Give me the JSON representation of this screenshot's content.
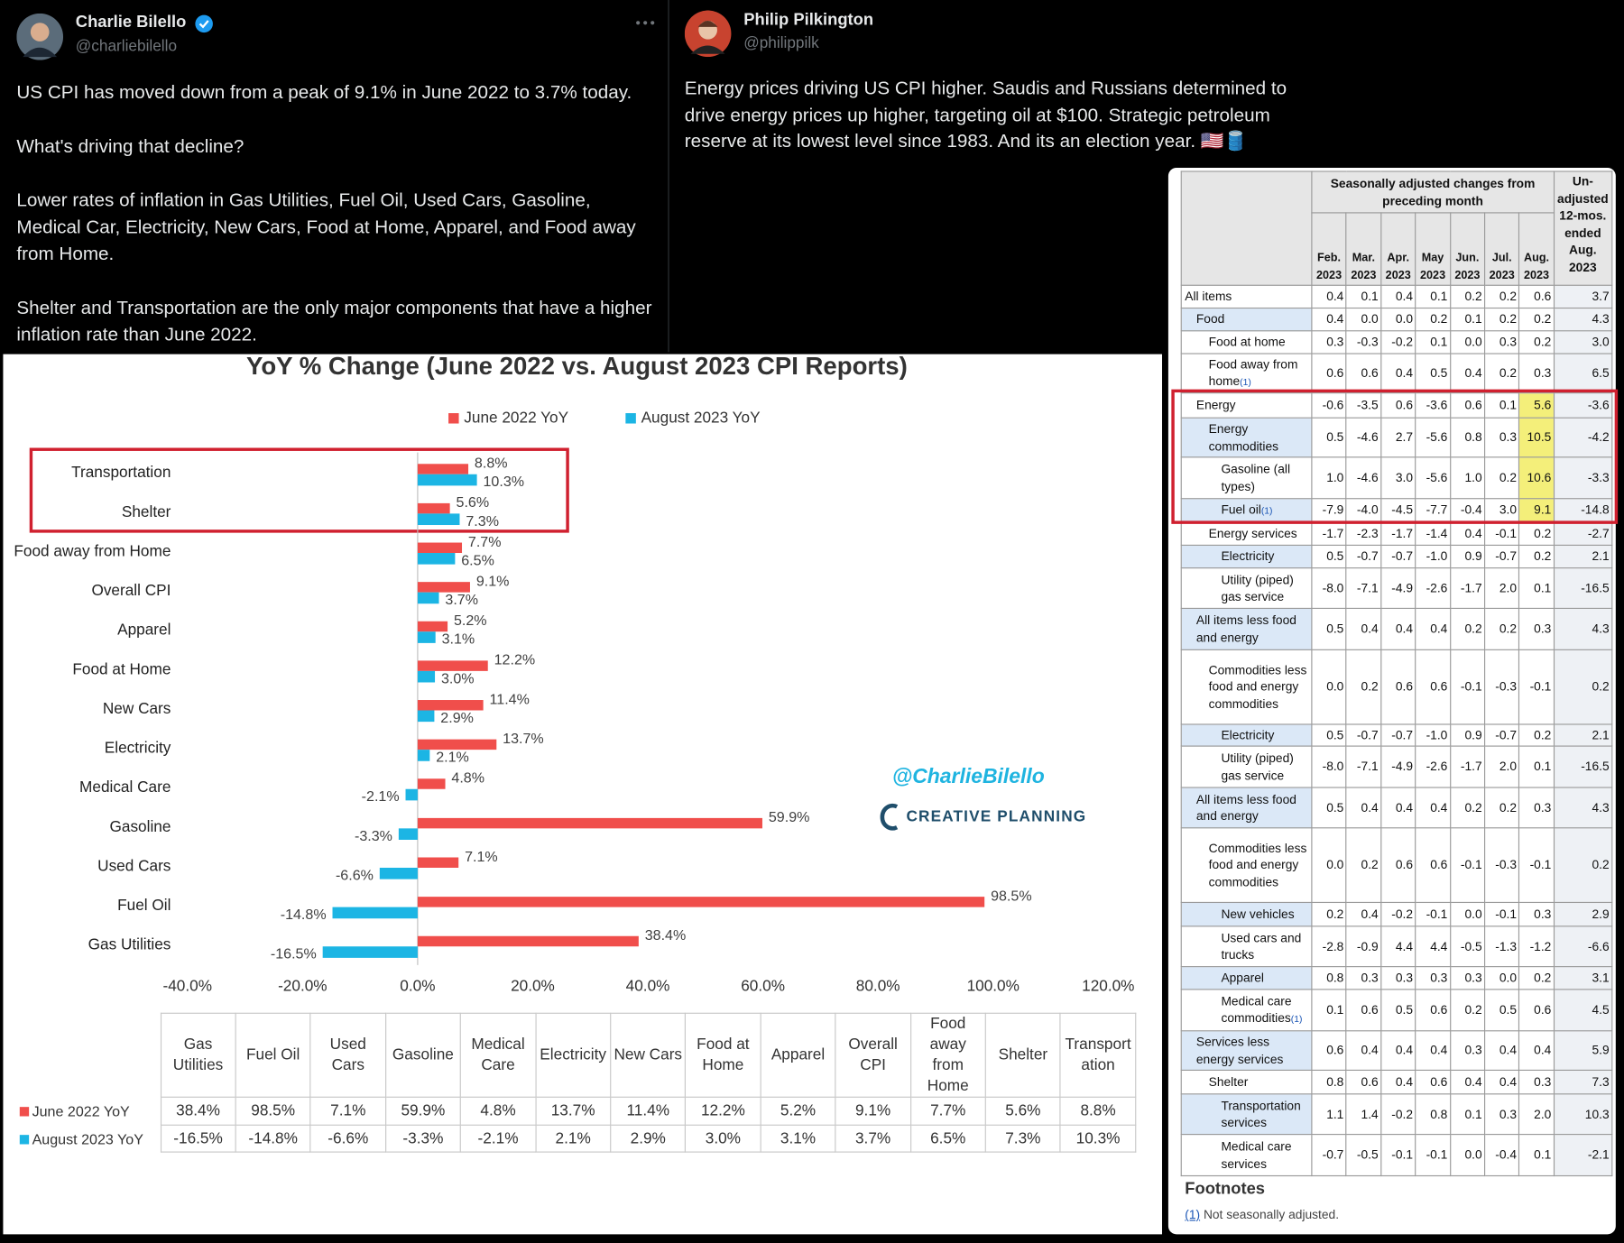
{
  "tweets": [
    {
      "name": "Charlie Bilello",
      "handle": "@charliebilello",
      "paragraphs": [
        "US CPI has moved down from a peak of 9.1% in June 2022 to 3.7% today.",
        "What's driving that decline?",
        "Lower rates of inflation in Gas Utilities, Fuel Oil, Used Cars, Gasoline, Medical Car, Electricity, New Cars, Food at Home, Apparel, and Food away from Home.",
        "Shelter and Transportation are the only major components that have a higher inflation rate than June 2022."
      ]
    },
    {
      "name": "Philip Pilkington",
      "handle": "@philippilk",
      "paragraphs": [
        "Energy prices driving US CPI higher. Saudis and Russians determined to drive energy prices up higher, targeting oil at $100. Strategic petroleum reserve at its lowest level since 1983. And its an election year. 🇺🇸🛢️"
      ]
    }
  ],
  "chart_data": {
    "type": "bar",
    "orientation": "horizontal",
    "title": "YoY % Change (June 2022 vs. August 2023 CPI Reports)",
    "categories": [
      "Gas Utilities",
      "Fuel Oil",
      "Used Cars",
      "Gasoline",
      "Medical Care",
      "Electricity",
      "New Cars",
      "Food at Home",
      "Apparel",
      "Overall CPI",
      "Food away from Home",
      "Shelter",
      "Transportation"
    ],
    "series": [
      {
        "name": "June 2022 YoY",
        "color": "#f04e4b",
        "values": [
          38.4,
          98.5,
          7.1,
          59.9,
          4.8,
          13.7,
          11.4,
          12.2,
          5.2,
          9.1,
          7.7,
          5.6,
          8.8
        ],
        "value_labels": [
          "38.4%",
          "98.5%",
          "7.1%",
          "59.9%",
          "4.8%",
          "13.7%",
          "11.4%",
          "12.2%",
          "5.2%",
          "9.1%",
          "7.7%",
          "5.6%",
          "8.8%"
        ]
      },
      {
        "name": "August 2023 YoY",
        "color": "#1cb5e4",
        "values": [
          -16.5,
          -14.8,
          -6.6,
          -3.3,
          -2.1,
          2.1,
          2.9,
          3.0,
          3.1,
          3.7,
          6.5,
          7.3,
          10.3
        ],
        "value_labels": [
          "-16.5%",
          "-14.8%",
          "-6.6%",
          "-3.3%",
          "-2.1%",
          "2.1%",
          "2.9%",
          "3.0%",
          "3.1%",
          "3.7%",
          "6.5%",
          "7.3%",
          "10.3%"
        ]
      }
    ],
    "xlim": [
      -40,
      120
    ],
    "xticks": [
      {
        "value": -40,
        "label": "-40.0%"
      },
      {
        "value": -20,
        "label": "-20.0%"
      },
      {
        "value": 0,
        "label": "0.0%"
      },
      {
        "value": 20,
        "label": "20.0%"
      },
      {
        "value": 40,
        "label": "40.0%"
      },
      {
        "value": 60,
        "label": "60.0%"
      },
      {
        "value": 80,
        "label": "80.0%"
      },
      {
        "value": 100,
        "label": "100.0%"
      },
      {
        "value": 120,
        "label": "120.0%"
      }
    ],
    "legend": "top",
    "data_table": true,
    "annotations": [
      "@CharlieBilello",
      "CREATIVE PLANNING"
    ]
  },
  "bls_table": {
    "header_group": "Seasonally adjusted changes from preceding month",
    "header_12mo": "Un-adjusted 12-mos. ended Aug. 2023",
    "months": [
      "Feb. 2023",
      "Mar. 2023",
      "Apr. 2023",
      "May 2023",
      "Jun. 2023",
      "Jul. 2023",
      "Aug. 2023"
    ],
    "rows": [
      {
        "label": "All items",
        "values": [
          "0.4",
          "0.1",
          "0.4",
          "0.1",
          "0.2",
          "0.2",
          "0.6"
        ],
        "yoy": "3.7"
      },
      {
        "label": "Food",
        "values": [
          "0.4",
          "0.0",
          "0.0",
          "0.2",
          "0.1",
          "0.2",
          "0.2"
        ],
        "yoy": "4.3"
      },
      {
        "label": "Food at home",
        "values": [
          "0.3",
          "-0.3",
          "-0.2",
          "0.1",
          "0.0",
          "0.3",
          "0.2"
        ],
        "yoy": "3.0"
      },
      {
        "label": "Food away from home",
        "note": "(1)",
        "values": [
          "0.6",
          "0.6",
          "0.4",
          "0.5",
          "0.4",
          "0.2",
          "0.3"
        ],
        "yoy": "6.5"
      },
      {
        "label": "Energy",
        "values": [
          "-0.6",
          "-3.5",
          "0.6",
          "-3.6",
          "0.6",
          "0.1",
          "5.6"
        ],
        "yoy": "-3.6"
      },
      {
        "label": "Energy commodities",
        "values": [
          "0.5",
          "-4.6",
          "2.7",
          "-5.6",
          "0.8",
          "0.3",
          "10.5"
        ],
        "yoy": "-4.2"
      },
      {
        "label": "Gasoline (all types)",
        "values": [
          "1.0",
          "-4.6",
          "3.0",
          "-5.6",
          "1.0",
          "0.2",
          "10.6"
        ],
        "yoy": "-3.3"
      },
      {
        "label": "Fuel oil",
        "note": "(1)",
        "values": [
          "-7.9",
          "-4.0",
          "-4.5",
          "-7.7",
          "-0.4",
          "3.0",
          "9.1"
        ],
        "yoy": "-14.8"
      },
      {
        "label": "Energy services",
        "values": [
          "-1.7",
          "-2.3",
          "-1.7",
          "-1.4",
          "0.4",
          "-0.1",
          "0.2"
        ],
        "yoy": "-2.7"
      },
      {
        "label": "Electricity",
        "values": [
          "0.5",
          "-0.7",
          "-0.7",
          "-1.0",
          "0.9",
          "-0.7",
          "0.2"
        ],
        "yoy": "2.1"
      },
      {
        "label": "Utility (piped) gas service",
        "values": [
          "-8.0",
          "-7.1",
          "-4.9",
          "-2.6",
          "-1.7",
          "2.0",
          "0.1"
        ],
        "yoy": "-16.5"
      },
      {
        "label": "All items less food and energy",
        "values": [
          "0.5",
          "0.4",
          "0.4",
          "0.4",
          "0.2",
          "0.2",
          "0.3"
        ],
        "yoy": "4.3"
      },
      {
        "label": "Commodities less food and energy commodities",
        "values": [
          "0.0",
          "0.2",
          "0.6",
          "0.6",
          "-0.1",
          "-0.3",
          "-0.1"
        ],
        "yoy": "0.2"
      },
      {
        "label": "Electricity",
        "values": [
          "0.5",
          "-0.7",
          "-0.7",
          "-1.0",
          "0.9",
          "-0.7",
          "0.2"
        ],
        "yoy": "2.1"
      },
      {
        "label": "Utility (piped) gas service",
        "values": [
          "-8.0",
          "-7.1",
          "-4.9",
          "-2.6",
          "-1.7",
          "2.0",
          "0.1"
        ],
        "yoy": "-16.5"
      },
      {
        "label": "All items less food and energy",
        "values": [
          "0.5",
          "0.4",
          "0.4",
          "0.4",
          "0.2",
          "0.2",
          "0.3"
        ],
        "yoy": "4.3"
      },
      {
        "label": "Commodities less food and energy commodities",
        "values": [
          "0.0",
          "0.2",
          "0.6",
          "0.6",
          "-0.1",
          "-0.3",
          "-0.1"
        ],
        "yoy": "0.2"
      },
      {
        "label": "New vehicles",
        "values": [
          "0.2",
          "0.4",
          "-0.2",
          "-0.1",
          "0.0",
          "-0.1",
          "0.3"
        ],
        "yoy": "2.9"
      },
      {
        "label": "Used cars and trucks",
        "values": [
          "-2.8",
          "-0.9",
          "4.4",
          "4.4",
          "-0.5",
          "-1.3",
          "-1.2"
        ],
        "yoy": "-6.6"
      },
      {
        "label": "Apparel",
        "values": [
          "0.8",
          "0.3",
          "0.3",
          "0.3",
          "0.3",
          "0.0",
          "0.2"
        ],
        "yoy": "3.1"
      },
      {
        "label": "Medical care commodities",
        "note": "(1)",
        "values": [
          "0.1",
          "0.6",
          "0.5",
          "0.6",
          "0.2",
          "0.5",
          "0.6"
        ],
        "yoy": "4.5"
      },
      {
        "label": "Services less energy services",
        "values": [
          "0.6",
          "0.4",
          "0.4",
          "0.4",
          "0.3",
          "0.4",
          "0.4"
        ],
        "yoy": "5.9"
      },
      {
        "label": "Shelter",
        "values": [
          "0.8",
          "0.6",
          "0.4",
          "0.6",
          "0.4",
          "0.4",
          "0.3"
        ],
        "yoy": "7.3"
      },
      {
        "label": "Transportation services",
        "values": [
          "1.1",
          "1.4",
          "-0.2",
          "0.8",
          "0.1",
          "0.3",
          "2.0"
        ],
        "yoy": "10.3"
      },
      {
        "label": "Medical care services",
        "values": [
          "-0.7",
          "-0.5",
          "-0.1",
          "-0.1",
          "0.0",
          "-0.4",
          "0.1"
        ],
        "yoy": "-2.1"
      }
    ],
    "footnotes_title": "Footnotes",
    "footnote": {
      "marker": "(1)",
      "text": "Not seasonally adjusted."
    }
  }
}
